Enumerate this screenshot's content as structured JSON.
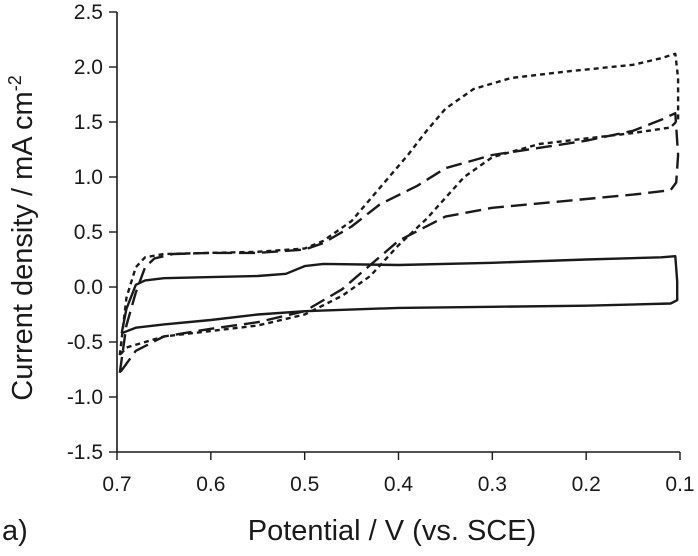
{
  "panel_label": "a)",
  "chart_data": {
    "type": "line",
    "title": "",
    "xlabel": "Potential / V (vs. SCE)",
    "ylabel": "Current density / mA cm",
    "ylabel_superscript": "-2",
    "xlim": [
      0.7,
      0.1
    ],
    "ylim": [
      -1.5,
      2.5
    ],
    "x_reversed": true,
    "x_ticks": [
      0.7,
      0.6,
      0.5,
      0.4,
      0.3,
      0.2,
      0.1
    ],
    "x_tick_labels": [
      "0.7",
      "0.6",
      "0.5",
      "0.4",
      "0.3",
      "0.2",
      "0.1"
    ],
    "y_ticks": [
      -1.5,
      -1.0,
      -0.5,
      0.0,
      0.5,
      1.0,
      1.5,
      2.0,
      2.5
    ],
    "y_tick_labels": [
      "-1.5",
      "-1.0",
      "-0.5",
      "0.0",
      "0.5",
      "1.0",
      "1.5",
      "2.0",
      "2.5"
    ],
    "grid": false,
    "legend": "none",
    "series": [
      {
        "style": "solid",
        "color": "#1a1a1a",
        "points": [
          [
            0.695,
            -0.42
          ],
          [
            0.69,
            -0.2
          ],
          [
            0.68,
            0.02
          ],
          [
            0.67,
            0.06
          ],
          [
            0.65,
            0.08
          ],
          [
            0.6,
            0.09
          ],
          [
            0.55,
            0.1
          ],
          [
            0.52,
            0.12
          ],
          [
            0.5,
            0.19
          ],
          [
            0.48,
            0.21
          ],
          [
            0.4,
            0.2
          ],
          [
            0.3,
            0.22
          ],
          [
            0.2,
            0.25
          ],
          [
            0.12,
            0.27
          ],
          [
            0.105,
            0.28
          ],
          [
            0.103,
            0.05
          ],
          [
            0.103,
            -0.12
          ],
          [
            0.11,
            -0.15
          ],
          [
            0.2,
            -0.17
          ],
          [
            0.3,
            -0.18
          ],
          [
            0.4,
            -0.19
          ],
          [
            0.5,
            -0.22
          ],
          [
            0.55,
            -0.25
          ],
          [
            0.6,
            -0.3
          ],
          [
            0.65,
            -0.34
          ],
          [
            0.68,
            -0.37
          ],
          [
            0.695,
            -0.42
          ]
        ]
      },
      {
        "style": "long-dash",
        "color": "#1a1a1a",
        "points": [
          [
            0.697,
            -0.78
          ],
          [
            0.69,
            -0.35
          ],
          [
            0.68,
            -0.05
          ],
          [
            0.67,
            0.18
          ],
          [
            0.66,
            0.26
          ],
          [
            0.64,
            0.3
          ],
          [
            0.6,
            0.31
          ],
          [
            0.55,
            0.31
          ],
          [
            0.5,
            0.34
          ],
          [
            0.48,
            0.4
          ],
          [
            0.45,
            0.55
          ],
          [
            0.42,
            0.75
          ],
          [
            0.38,
            0.92
          ],
          [
            0.35,
            1.08
          ],
          [
            0.3,
            1.2
          ],
          [
            0.2,
            1.33
          ],
          [
            0.15,
            1.42
          ],
          [
            0.12,
            1.52
          ],
          [
            0.105,
            1.58
          ],
          [
            0.102,
            1.2
          ],
          [
            0.104,
            0.95
          ],
          [
            0.11,
            0.88
          ],
          [
            0.15,
            0.84
          ],
          [
            0.2,
            0.8
          ],
          [
            0.3,
            0.72
          ],
          [
            0.35,
            0.64
          ],
          [
            0.4,
            0.42
          ],
          [
            0.43,
            0.2
          ],
          [
            0.46,
            -0.02
          ],
          [
            0.5,
            -0.22
          ],
          [
            0.55,
            -0.32
          ],
          [
            0.6,
            -0.38
          ],
          [
            0.65,
            -0.45
          ],
          [
            0.68,
            -0.58
          ],
          [
            0.697,
            -0.78
          ]
        ]
      },
      {
        "style": "short-dash",
        "color": "#1a1a1a",
        "points": [
          [
            0.697,
            -0.62
          ],
          [
            0.69,
            -0.1
          ],
          [
            0.68,
            0.18
          ],
          [
            0.67,
            0.27
          ],
          [
            0.65,
            0.3
          ],
          [
            0.6,
            0.31
          ],
          [
            0.55,
            0.32
          ],
          [
            0.5,
            0.35
          ],
          [
            0.48,
            0.42
          ],
          [
            0.45,
            0.6
          ],
          [
            0.42,
            0.9
          ],
          [
            0.39,
            1.2
          ],
          [
            0.37,
            1.42
          ],
          [
            0.35,
            1.62
          ],
          [
            0.32,
            1.8
          ],
          [
            0.28,
            1.9
          ],
          [
            0.22,
            1.96
          ],
          [
            0.15,
            2.02
          ],
          [
            0.12,
            2.08
          ],
          [
            0.105,
            2.12
          ],
          [
            0.102,
            1.9
          ],
          [
            0.102,
            1.52
          ],
          [
            0.11,
            1.45
          ],
          [
            0.15,
            1.4
          ],
          [
            0.2,
            1.35
          ],
          [
            0.25,
            1.3
          ],
          [
            0.3,
            1.18
          ],
          [
            0.33,
            1.0
          ],
          [
            0.37,
            0.62
          ],
          [
            0.4,
            0.38
          ],
          [
            0.43,
            0.1
          ],
          [
            0.46,
            -0.08
          ],
          [
            0.5,
            -0.25
          ],
          [
            0.55,
            -0.35
          ],
          [
            0.6,
            -0.4
          ],
          [
            0.65,
            -0.45
          ],
          [
            0.69,
            -0.55
          ],
          [
            0.697,
            -0.62
          ]
        ]
      }
    ]
  }
}
